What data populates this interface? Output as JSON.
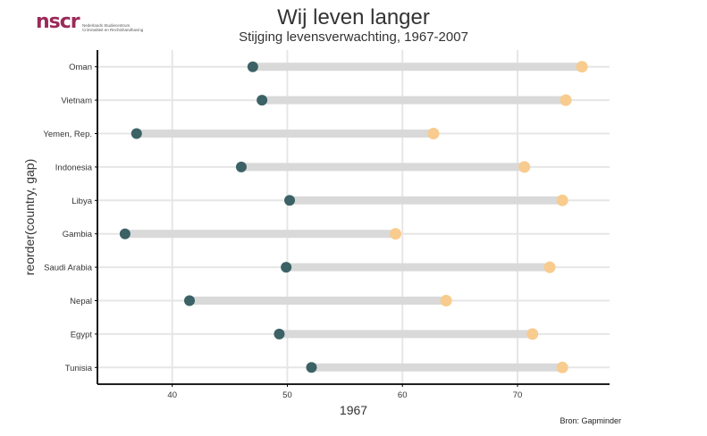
{
  "logo": {
    "mark": "nscr",
    "line1": "Nederlands Studiecentrum",
    "line2": "Criminaliteit en Rechtshandhaving"
  },
  "title": "Wij leven langer",
  "subtitle": "Stijging levensverwachting, 1967-2007",
  "caption": "Bron: Gapminder",
  "colors": {
    "start": "#3c6266",
    "end": "#f8cb8e",
    "segment": "#d9d9d9",
    "grid": "#e6e6e6",
    "axis": "#000000"
  },
  "chart_data": {
    "type": "dumbbell",
    "xlabel": "1967",
    "ylabel": "reorder(country, gap)",
    "xlim": [
      33.5,
      78
    ],
    "xticks": [
      40,
      50,
      60,
      70
    ],
    "grid": true,
    "series": [
      {
        "name": "1967",
        "color": "#3c6266"
      },
      {
        "name": "2007",
        "color": "#f8cb8e"
      }
    ],
    "categories": [
      "Oman",
      "Vietnam",
      "Yemen, Rep.",
      "Indonesia",
      "Libya",
      "Gambia",
      "Saudi Arabia",
      "Nepal",
      "Egypt",
      "Tunisia"
    ],
    "start": [
      47.0,
      47.8,
      36.9,
      46.0,
      50.2,
      35.9,
      49.9,
      41.5,
      49.3,
      52.1
    ],
    "end": [
      75.6,
      74.2,
      62.7,
      70.6,
      73.9,
      59.4,
      72.8,
      63.8,
      71.3,
      73.9
    ]
  }
}
